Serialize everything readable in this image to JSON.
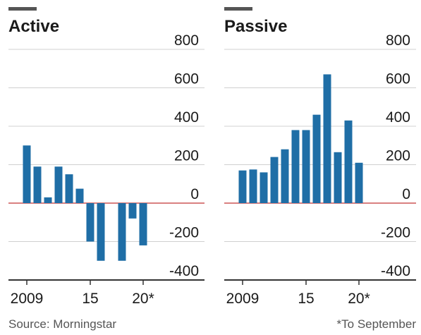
{
  "chart_data": [
    {
      "type": "bar",
      "title": "Active",
      "categories": [
        "2009",
        null,
        null,
        null,
        null,
        null,
        "15",
        null,
        null,
        null,
        null,
        "20*"
      ],
      "values": [
        300,
        190,
        30,
        190,
        150,
        75,
        -200,
        -300,
        0,
        -300,
        -80,
        -220
      ],
      "color": "#1f6ea6",
      "ylim": [
        -400,
        800
      ],
      "yticks": [
        -400,
        -200,
        0,
        200,
        400,
        600,
        800
      ],
      "grid": true
    },
    {
      "type": "bar",
      "title": "Passive",
      "categories": [
        "2009",
        null,
        null,
        null,
        null,
        null,
        "15",
        null,
        null,
        null,
        null,
        "20*"
      ],
      "values": [
        170,
        175,
        160,
        240,
        280,
        380,
        380,
        460,
        670,
        265,
        430,
        210
      ],
      "color": "#1f6ea6",
      "ylim": [
        -400,
        800
      ],
      "yticks": [
        -400,
        -200,
        0,
        200,
        400,
        600,
        800
      ],
      "grid": true
    }
  ],
  "source": "Source: Morningstar",
  "note": "*To September"
}
